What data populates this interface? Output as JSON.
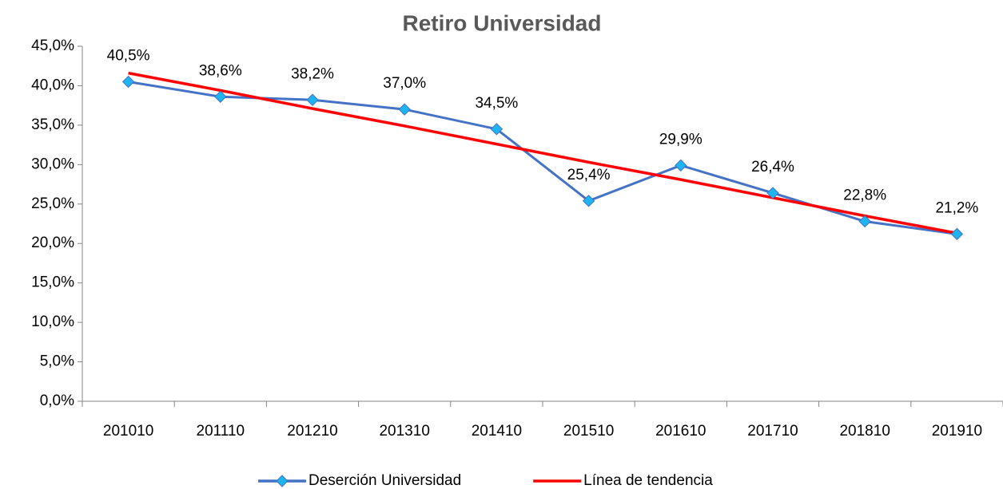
{
  "chart_data": {
    "type": "line",
    "title": "Retiro Universidad",
    "categories": [
      "201010",
      "201110",
      "201210",
      "201310",
      "201410",
      "201510",
      "201610",
      "201710",
      "201810",
      "201910"
    ],
    "series": [
      {
        "name": "Deserción Universidad",
        "color": "#4472c4",
        "marker_color": "#1fb4ef",
        "values": [
          40.5,
          38.6,
          38.2,
          37.0,
          34.5,
          25.4,
          29.9,
          26.4,
          22.8,
          21.2
        ],
        "value_labels": [
          "40,5%",
          "38,6%",
          "38,2%",
          "37,0%",
          "34,5%",
          "25,4%",
          "29,9%",
          "26,4%",
          "22,8%",
          "21,2%"
        ]
      },
      {
        "name": "Línea de tendencia",
        "color": "#ff0000",
        "values": [
          41.6,
          39.4,
          37.1,
          34.9,
          32.6,
          30.3,
          28.1,
          25.8,
          23.5,
          21.3
        ]
      }
    ],
    "ylim": [
      0,
      45
    ],
    "yticks": [
      {
        "value": 0,
        "label": "0,0%"
      },
      {
        "value": 5,
        "label": "5,0%"
      },
      {
        "value": 10,
        "label": "10,0%"
      },
      {
        "value": 15,
        "label": "15,0%"
      },
      {
        "value": 20,
        "label": "20,0%"
      },
      {
        "value": 25,
        "label": "25,0%"
      },
      {
        "value": 30,
        "label": "30,0%"
      },
      {
        "value": 35,
        "label": "35,0%"
      },
      {
        "value": 40,
        "label": "40,0%"
      },
      {
        "value": 45,
        "label": "45,0%"
      }
    ],
    "grid": false,
    "legend": "bottom"
  }
}
